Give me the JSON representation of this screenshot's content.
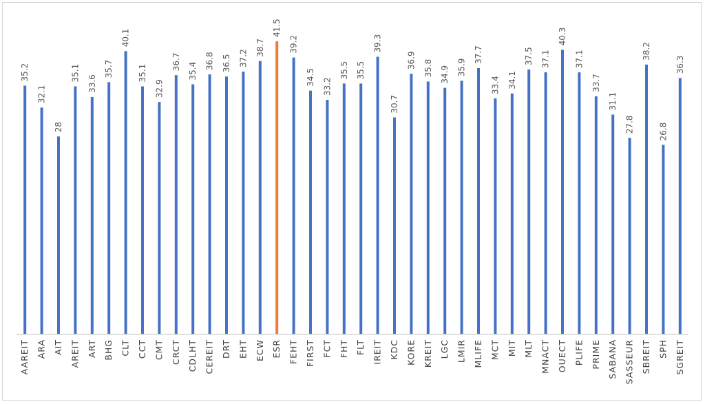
{
  "chart_data": {
    "type": "bar",
    "categories": [
      "AAREIT",
      "ARA",
      "AIT",
      "AREIT",
      "ART",
      "BHG",
      "CLT",
      "CCT",
      "CMT",
      "CRCT",
      "CDLHT",
      "CEREIT",
      "DRT",
      "EHT",
      "ECW",
      "ESR",
      "FEHT",
      "FIRST",
      "FCT",
      "FHT",
      "FLT",
      "IREIT",
      "KDC",
      "KORE",
      "KREIT",
      "LGC",
      "LMIR",
      "MLIFE",
      "MCT",
      "MIT",
      "MLT",
      "MNACT",
      "OUECT",
      "PLIFE",
      "PRIME",
      "SABANA",
      "SASSEUR",
      "SBREIT",
      "SPH",
      "SGREIT"
    ],
    "values": [
      35.2,
      32.1,
      28,
      35.1,
      33.6,
      35.7,
      40.1,
      35.1,
      32.9,
      36.7,
      35.4,
      36.8,
      36.5,
      37.2,
      38.7,
      41.5,
      39.2,
      34.5,
      33.2,
      35.5,
      35.5,
      39.3,
      30.7,
      36.9,
      35.8,
      34.9,
      35.9,
      37.7,
      33.4,
      34.1,
      37.5,
      37.1,
      40.3,
      37.1,
      33.7,
      31.1,
      27.8,
      38.2,
      26.8,
      36.3
    ],
    "value_labels": [
      "35.2",
      "32.1",
      "28",
      "35.1",
      "33.6",
      "35.7",
      "40.1",
      "35.1",
      "32.9",
      "36.7",
      "35.4",
      "36.8",
      "36.5",
      "37.2",
      "38.7",
      "41.5",
      "39.2",
      "34.5",
      "33.2",
      "35.5",
      "35.5",
      "39.3",
      "30.7",
      "36.9",
      "35.8",
      "34.9",
      "35.9",
      "37.7",
      "33.4",
      "34.1",
      "37.5",
      "37.1",
      "40.3",
      "37.1",
      "33.7",
      "31.1",
      "27.8",
      "38.2",
      "26.8",
      "36.3"
    ],
    "highlight_category": "ESR",
    "ylim": [
      0,
      41.5
    ],
    "colors": {
      "default": "#4472C4",
      "highlight": "#ED7D31",
      "axis": "#bfbfbf",
      "label": "#595959"
    },
    "title": "",
    "xlabel": "",
    "ylabel": "",
    "grid": false,
    "legend": "none"
  }
}
